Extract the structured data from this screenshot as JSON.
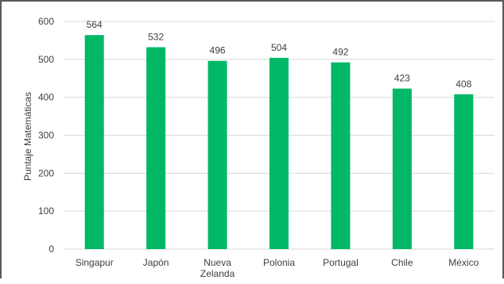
{
  "chart_data": {
    "type": "bar",
    "categories": [
      "Singapur",
      "Japón",
      "Nueva Zelanda",
      "Polonia",
      "Portugal",
      "Chile",
      "México"
    ],
    "category_lines": [
      [
        "Singapur"
      ],
      [
        "Japón"
      ],
      [
        "Nueva",
        "Zelanda"
      ],
      [
        "Polonia"
      ],
      [
        "Portugal"
      ],
      [
        "Chile"
      ],
      [
        "México"
      ]
    ],
    "values": [
      564,
      532,
      496,
      504,
      492,
      423,
      408
    ],
    "title": "",
    "xlabel": "",
    "ylabel": "Puntaje Matemáticas",
    "ylim": [
      0,
      600
    ],
    "yticks": [
      0,
      100,
      200,
      300,
      400,
      500,
      600
    ],
    "grid": true,
    "legend": "none",
    "bar_color": "#00B866",
    "grid_color": "#D9D9D9",
    "text_color": "#404040"
  }
}
